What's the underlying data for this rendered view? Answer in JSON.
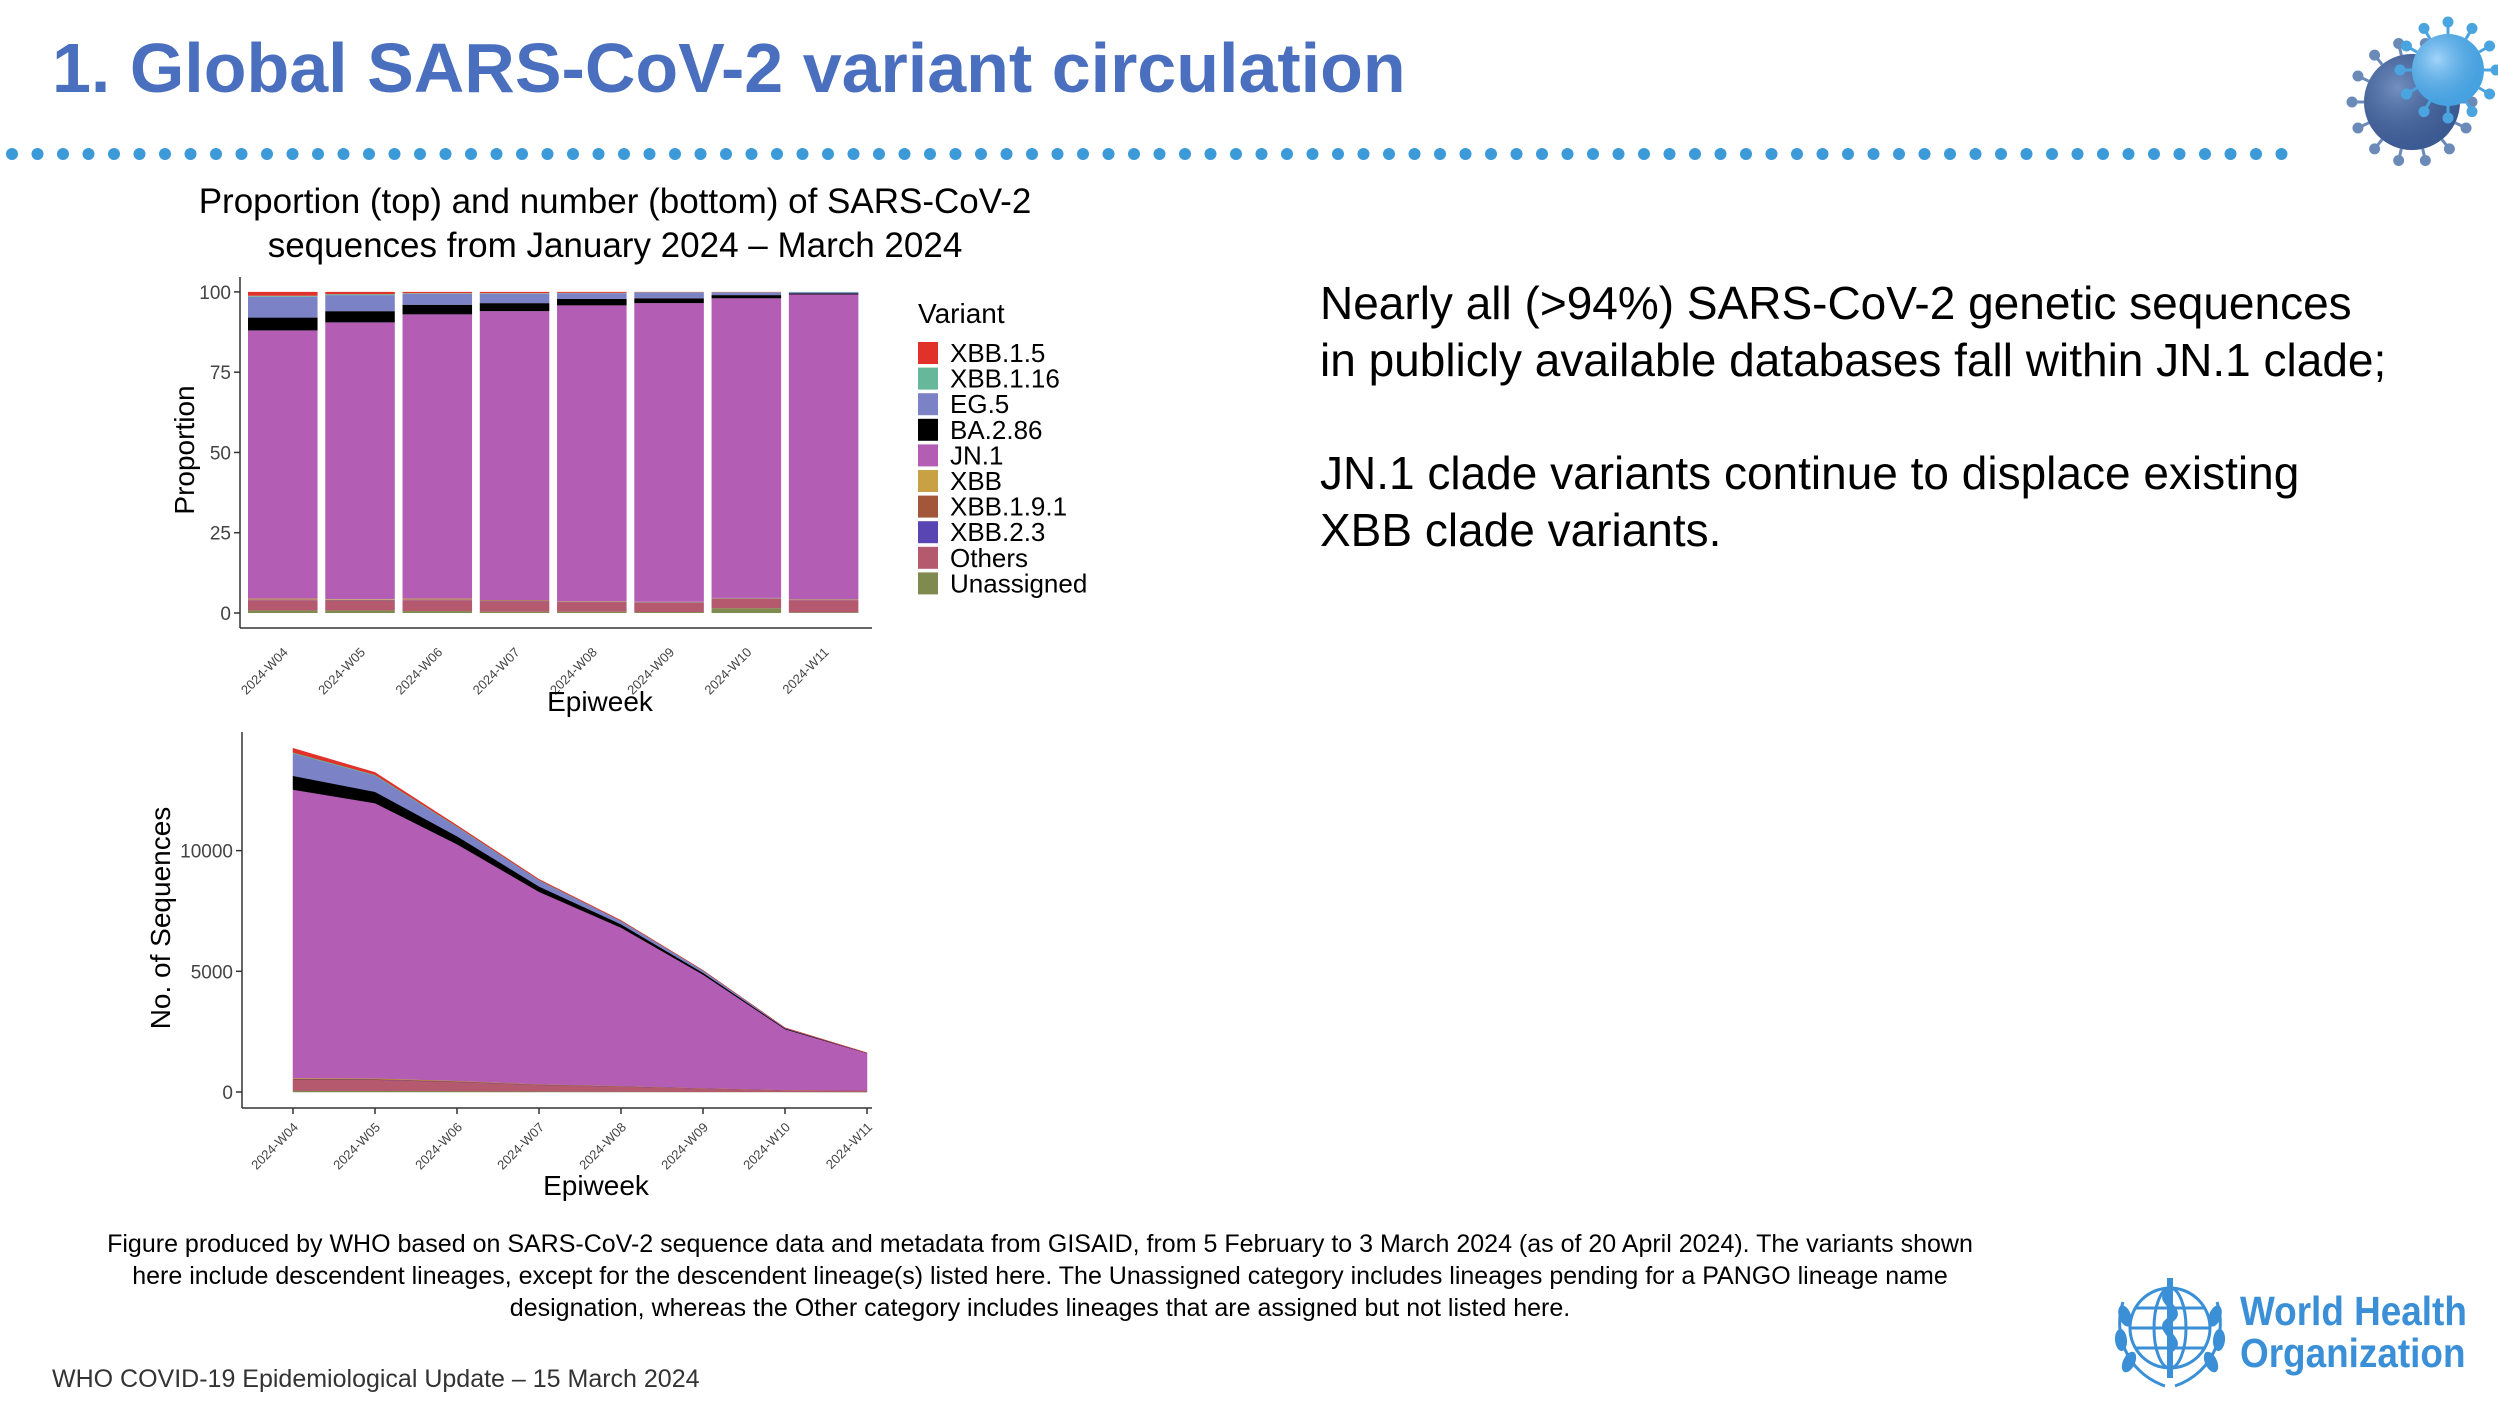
{
  "slide": {
    "title": "1. Global SARS-CoV-2 variant circulation",
    "chart_title_line1": "Proportion (top) and number (bottom) of SARS-CoV-2",
    "chart_title_line2": "sequences from January 2024 – March 2024",
    "right_text_1": "Nearly all (>94%) SARS-CoV-2 genetic sequences in publicly available databases fall within JN.1 clade;",
    "right_text_2": "JN.1 clade variants continue to displace existing XBB clade variants.",
    "caption_line1": "Figure produced by WHO based on SARS-CoV-2 sequence data and metadata from GISAID, from 5 February to 3 March 2024 (as of 20 April 2024). The variants shown",
    "caption_line2": "here include descendent lineages, except for the descendent lineage(s) listed here. The Unassigned category includes lineages pending for a PANGO lineage name",
    "caption_line3": "designation, whereas the Other category includes lineages that are assigned but not listed here.",
    "footer": "WHO COVID-19 Epidemiological Update – 15 March 2024",
    "logo_text_line1": "World Health",
    "logo_text_line2": "Organization",
    "title_color": "#4a6fbf",
    "dot_color": "#3d9ad9",
    "icons": [
      "coronavirus-icon",
      "who-emblem-icon"
    ]
  },
  "chart_data": [
    {
      "type": "bar",
      "stacked": true,
      "xlabel": "Epiweek",
      "ylabel": "Proportion",
      "ylim": [
        0,
        100
      ],
      "yticks": [
        0,
        25,
        50,
        75,
        100
      ],
      "categories": [
        "2024-W04",
        "2024-W05",
        "2024-W06",
        "2024-W07",
        "2024-W08",
        "2024-W09",
        "2024-W10",
        "2024-W11"
      ],
      "legend_title": "Variant",
      "legend_position": "right",
      "series": [
        {
          "name": "Unassigned",
          "color": "#7f8a4e",
          "values": [
            0.8,
            0.8,
            0.6,
            0.4,
            0.4,
            0.3,
            1.5,
            0.2
          ]
        },
        {
          "name": "Others",
          "color": "#b4596e",
          "values": [
            3.2,
            3.0,
            3.4,
            3.2,
            3.0,
            2.9,
            2.9,
            3.8
          ]
        },
        {
          "name": "XBB.2.3",
          "color": "#5a46b3",
          "values": [
            0.1,
            0.1,
            0.1,
            0.1,
            0.1,
            0.1,
            0.1,
            0.1
          ]
        },
        {
          "name": "XBB.1.9.1",
          "color": "#a25738",
          "values": [
            0.2,
            0.2,
            0.2,
            0.2,
            0.1,
            0.1,
            0.1,
            0.1
          ]
        },
        {
          "name": "XBB",
          "color": "#c9a145",
          "values": [
            0.2,
            0.2,
            0.2,
            0.1,
            0.1,
            0.1,
            0.1,
            0.1
          ]
        },
        {
          "name": "JN.1",
          "color": "#b35db5",
          "values": [
            83.5,
            86.2,
            88.5,
            90.0,
            92.1,
            93.0,
            93.3,
            94.9
          ]
        },
        {
          "name": "BA.2.86",
          "color": "#000000",
          "values": [
            4.0,
            3.5,
            3.0,
            2.5,
            2.0,
            1.5,
            1.0,
            0.3
          ]
        },
        {
          "name": "EG.5",
          "color": "#7b83c6",
          "values": [
            6.5,
            5.0,
            3.4,
            2.9,
            1.8,
            1.8,
            0.8,
            0.4
          ]
        },
        {
          "name": "XBB.1.16",
          "color": "#67b89b",
          "values": [
            0.3,
            0.3,
            0.2,
            0.2,
            0.1,
            0.1,
            0.1,
            0.1
          ]
        },
        {
          "name": "XBB.1.5",
          "color": "#e0312a",
          "values": [
            1.2,
            0.7,
            0.4,
            0.4,
            0.3,
            0.1,
            0.1,
            0.0
          ]
        }
      ]
    },
    {
      "type": "area",
      "stacked": true,
      "xlabel": "Epiweek",
      "ylabel": "No. of Sequences",
      "ylim": [
        0,
        14500
      ],
      "yticks": [
        0,
        5000,
        10000
      ],
      "categories": [
        "2024-W04",
        "2024-W05",
        "2024-W06",
        "2024-W07",
        "2024-W08",
        "2024-W09",
        "2024-W10",
        "2024-W11"
      ],
      "series": [
        {
          "name": "Unassigned",
          "color": "#7f8a4e",
          "values": [
            60,
            50,
            40,
            25,
            20,
            12,
            10,
            3
          ]
        },
        {
          "name": "Others",
          "color": "#b4596e",
          "values": [
            450,
            460,
            380,
            270,
            210,
            140,
            70,
            60
          ]
        },
        {
          "name": "XBB.2.3",
          "color": "#5a46b3",
          "values": [
            10,
            10,
            8,
            6,
            5,
            4,
            2,
            1
          ]
        },
        {
          "name": "XBB.1.9.1",
          "color": "#a25738",
          "values": [
            30,
            25,
            20,
            15,
            10,
            6,
            3,
            2
          ]
        },
        {
          "name": "XBB",
          "color": "#c9a145",
          "values": [
            30,
            25,
            20,
            12,
            8,
            5,
            3,
            2
          ]
        },
        {
          "name": "JN.1",
          "color": "#b35db5",
          "values": [
            11950,
            11400,
            9800,
            7970,
            6560,
            4700,
            2520,
            1540
          ]
        },
        {
          "name": "BA.2.86",
          "color": "#000000",
          "values": [
            570,
            470,
            330,
            220,
            140,
            75,
            30,
            5
          ]
        },
        {
          "name": "EG.5",
          "color": "#7b83c6",
          "values": [
            930,
            670,
            380,
            250,
            130,
            90,
            20,
            6
          ]
        },
        {
          "name": "XBB.1.16",
          "color": "#67b89b",
          "values": [
            40,
            35,
            25,
            15,
            8,
            5,
            2,
            1
          ]
        },
        {
          "name": "XBB.1.5",
          "color": "#e0312a",
          "values": [
            170,
            95,
            45,
            30,
            20,
            5,
            2,
            0
          ]
        }
      ]
    }
  ]
}
